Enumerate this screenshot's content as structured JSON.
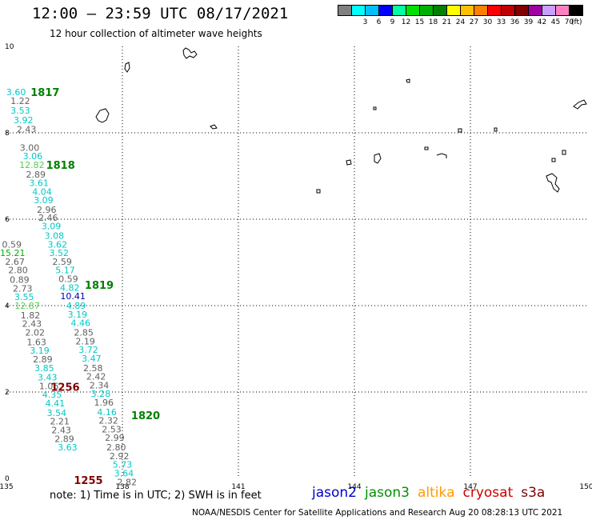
{
  "header": {
    "title": "12:00 – 23:59 UTC 08/17/2021",
    "subtitle": "12 hour collection of altimeter wave heights"
  },
  "legend": {
    "unit": "(ft)",
    "items": [
      {
        "label": "",
        "color": "#808080"
      },
      {
        "label": "3",
        "color": "#00ffff"
      },
      {
        "label": "6",
        "color": "#00bfff"
      },
      {
        "label": "9",
        "color": "#0000ff"
      },
      {
        "label": "12",
        "color": "#00ffa0"
      },
      {
        "label": "15",
        "color": "#00e000"
      },
      {
        "label": "18",
        "color": "#00b000"
      },
      {
        "label": "21",
        "color": "#008000"
      },
      {
        "label": "24",
        "color": "#ffff00"
      },
      {
        "label": "27",
        "color": "#ffc000"
      },
      {
        "label": "30",
        "color": "#ff8000"
      },
      {
        "label": "33",
        "color": "#ff0000"
      },
      {
        "label": "36",
        "color": "#c00000"
      },
      {
        "label": "39",
        "color": "#800000"
      },
      {
        "label": "42",
        "color": "#a000a0"
      },
      {
        "label": "45",
        "color": "#c8a0ff"
      },
      {
        "label": "70",
        "color": "#ff80c0"
      },
      {
        "label": "",
        "color": "#000000"
      }
    ]
  },
  "map": {
    "lon_ticks": [
      "135",
      "138",
      "141",
      "144",
      "147",
      "150"
    ],
    "lat_ticks": [
      "0",
      "2",
      "4",
      "6",
      "8",
      "10"
    ],
    "lon_min": 135,
    "lon_max": 150,
    "lat_min": 0,
    "lat_max": 10,
    "pass_labels": [
      {
        "text": "1817",
        "color": "#008000",
        "lon": 136.0,
        "lat": 8.94
      },
      {
        "text": "1818",
        "color": "#008000",
        "lon": 136.4,
        "lat": 7.26
      },
      {
        "text": "1819",
        "color": "#008000",
        "lon": 137.4,
        "lat": 4.48
      },
      {
        "text": "1256",
        "color": "#800000",
        "lon": 136.52,
        "lat": 2.12
      },
      {
        "text": "1820",
        "color": "#008000",
        "lon": 138.6,
        "lat": 1.46
      },
      {
        "text": "1255",
        "color": "#800000",
        "lon": 137.12,
        "lat": -0.04
      }
    ],
    "observations": [
      {
        "v": "3.60",
        "c": "#00c8c8",
        "lon": 135.25,
        "lat": 8.94
      },
      {
        "v": "1.22",
        "c": "#606060",
        "lon": 135.36,
        "lat": 8.74
      },
      {
        "v": "3.53",
        "c": "#00c8c8",
        "lon": 135.36,
        "lat": 8.52
      },
      {
        "v": "3.92",
        "c": "#00c8c8",
        "lon": 135.44,
        "lat": 8.3
      },
      {
        "v": "2.43",
        "c": "#606060",
        "lon": 135.52,
        "lat": 8.08
      },
      {
        "v": "3.00",
        "c": "#606060",
        "lon": 135.6,
        "lat": 7.66
      },
      {
        "v": "3.06",
        "c": "#00c8c8",
        "lon": 135.68,
        "lat": 7.46
      },
      {
        "v": "12.82",
        "c": "#50d050",
        "lon": 135.66,
        "lat": 7.26
      },
      {
        "v": "2.89",
        "c": "#606060",
        "lon": 135.76,
        "lat": 7.04
      },
      {
        "v": "3.61",
        "c": "#00c8c8",
        "lon": 135.84,
        "lat": 6.84
      },
      {
        "v": "4.04",
        "c": "#00c8c8",
        "lon": 135.92,
        "lat": 6.64
      },
      {
        "v": "3.09",
        "c": "#00c8c8",
        "lon": 135.96,
        "lat": 6.44
      },
      {
        "v": "2.96",
        "c": "#606060",
        "lon": 136.04,
        "lat": 6.22
      },
      {
        "v": "2.46",
        "c": "#606060",
        "lon": 136.08,
        "lat": 6.04
      },
      {
        "v": "3.09",
        "c": "#00c8c8",
        "lon": 136.16,
        "lat": 5.84
      },
      {
        "v": "3.08",
        "c": "#00c8c8",
        "lon": 136.24,
        "lat": 5.62
      },
      {
        "v": "3.62",
        "c": "#00c8c8",
        "lon": 136.32,
        "lat": 5.42
      },
      {
        "v": "3.52",
        "c": "#00c8c8",
        "lon": 136.36,
        "lat": 5.22
      },
      {
        "v": "2.59",
        "c": "#606060",
        "lon": 136.44,
        "lat": 5.02
      },
      {
        "v": "5.17",
        "c": "#00c8c8",
        "lon": 136.52,
        "lat": 4.82
      },
      {
        "v": "0.59",
        "c": "#606060",
        "lon": 136.6,
        "lat": 4.62
      },
      {
        "v": "4.82",
        "c": "#00c8c8",
        "lon": 136.64,
        "lat": 4.42
      },
      {
        "v": "10.41",
        "c": "#0000b0",
        "lon": 136.72,
        "lat": 4.22
      },
      {
        "v": "4.89",
        "c": "#00c8c8",
        "lon": 136.8,
        "lat": 4.0
      },
      {
        "v": "3.19",
        "c": "#00c8c8",
        "lon": 136.84,
        "lat": 3.8
      },
      {
        "v": "4.46",
        "c": "#00c8c8",
        "lon": 136.92,
        "lat": 3.6
      },
      {
        "v": "2.85",
        "c": "#606060",
        "lon": 137.0,
        "lat": 3.38
      },
      {
        "v": "2.19",
        "c": "#606060",
        "lon": 137.04,
        "lat": 3.18
      },
      {
        "v": "3.72",
        "c": "#00c8c8",
        "lon": 137.12,
        "lat": 2.98
      },
      {
        "v": "3.47",
        "c": "#00c8c8",
        "lon": 137.2,
        "lat": 2.78
      },
      {
        "v": "2.58",
        "c": "#606060",
        "lon": 137.24,
        "lat": 2.56
      },
      {
        "v": "2.42",
        "c": "#606060",
        "lon": 137.32,
        "lat": 2.36
      },
      {
        "v": "2.34",
        "c": "#606060",
        "lon": 137.4,
        "lat": 2.16
      },
      {
        "v": "3.28",
        "c": "#00c8c8",
        "lon": 137.44,
        "lat": 1.96
      },
      {
        "v": "1.96",
        "c": "#606060",
        "lon": 137.52,
        "lat": 1.76
      },
      {
        "v": "4.16",
        "c": "#00c8c8",
        "lon": 137.6,
        "lat": 1.54
      },
      {
        "v": "2.32",
        "c": "#606060",
        "lon": 137.64,
        "lat": 1.34
      },
      {
        "v": "2.53",
        "c": "#606060",
        "lon": 137.72,
        "lat": 1.14
      },
      {
        "v": "2.99",
        "c": "#606060",
        "lon": 137.8,
        "lat": 0.94
      },
      {
        "v": "2.80",
        "c": "#606060",
        "lon": 137.84,
        "lat": 0.72
      },
      {
        "v": "2.92",
        "c": "#606060",
        "lon": 137.92,
        "lat": 0.52
      },
      {
        "v": "5.73",
        "c": "#00c8c8",
        "lon": 138.0,
        "lat": 0.32
      },
      {
        "v": "3.64",
        "c": "#00c8c8",
        "lon": 138.04,
        "lat": 0.12
      },
      {
        "v": "2.82",
        "c": "#606060",
        "lon": 138.12,
        "lat": -0.08
      },
      {
        "v": "0.59",
        "c": "#606060",
        "lon": 135.14,
        "lat": 5.42
      },
      {
        "v": "15.21",
        "c": "#00b000",
        "lon": 135.16,
        "lat": 5.22
      },
      {
        "v": "2.67",
        "c": "#606060",
        "lon": 135.22,
        "lat": 5.02
      },
      {
        "v": "2.80",
        "c": "#606060",
        "lon": 135.3,
        "lat": 4.82
      },
      {
        "v": "0.89",
        "c": "#606060",
        "lon": 135.34,
        "lat": 4.6
      },
      {
        "v": "2.73",
        "c": "#606060",
        "lon": 135.42,
        "lat": 4.4
      },
      {
        "v": "3.55",
        "c": "#00c8c8",
        "lon": 135.46,
        "lat": 4.2
      },
      {
        "v": "12.87",
        "c": "#50d050",
        "lon": 135.54,
        "lat": 4.0
      },
      {
        "v": "1.82",
        "c": "#606060",
        "lon": 135.62,
        "lat": 3.78
      },
      {
        "v": "2.43",
        "c": "#606060",
        "lon": 135.66,
        "lat": 3.58
      },
      {
        "v": "2.02",
        "c": "#606060",
        "lon": 135.74,
        "lat": 3.38
      },
      {
        "v": "1.63",
        "c": "#606060",
        "lon": 135.78,
        "lat": 3.16
      },
      {
        "v": "3.19",
        "c": "#00c8c8",
        "lon": 135.86,
        "lat": 2.96
      },
      {
        "v": "2.89",
        "c": "#606060",
        "lon": 135.94,
        "lat": 2.76
      },
      {
        "v": "3.85",
        "c": "#00c8c8",
        "lon": 135.98,
        "lat": 2.56
      },
      {
        "v": "3.43",
        "c": "#00c8c8",
        "lon": 136.06,
        "lat": 2.34
      },
      {
        "v": "1.06",
        "c": "#606060",
        "lon": 136.1,
        "lat": 2.14
      },
      {
        "v": "4.35",
        "c": "#00c8c8",
        "lon": 136.18,
        "lat": 1.94
      },
      {
        "v": "4.41",
        "c": "#00c8c8",
        "lon": 136.26,
        "lat": 1.74
      },
      {
        "v": "3.54",
        "c": "#00c8c8",
        "lon": 136.3,
        "lat": 1.52
      },
      {
        "v": "2.21",
        "c": "#606060",
        "lon": 136.38,
        "lat": 1.32
      },
      {
        "v": "2.43",
        "c": "#606060",
        "lon": 136.42,
        "lat": 1.12
      },
      {
        "v": "2.89",
        "c": "#606060",
        "lon": 136.5,
        "lat": 0.92
      },
      {
        "v": "3.63",
        "c": "#00c8c8",
        "lon": 136.58,
        "lat": 0.72
      }
    ]
  },
  "footer": {
    "note": "note:  1) Time is in UTC;  2) SWH is in feet",
    "satellites": [
      {
        "name": "jason2",
        "color": "#0000cc"
      },
      {
        "name": "jason3",
        "color": "#009000"
      },
      {
        "name": "altika",
        "color": "#ff9900"
      },
      {
        "name": "cryosat",
        "color": "#cc0000"
      },
      {
        "name": "s3a",
        "color": "#800000"
      }
    ],
    "credit": "NOAA/NESDIS Center for Satellite Applications and Research     Aug 20 08:28:13 UTC 2021"
  }
}
